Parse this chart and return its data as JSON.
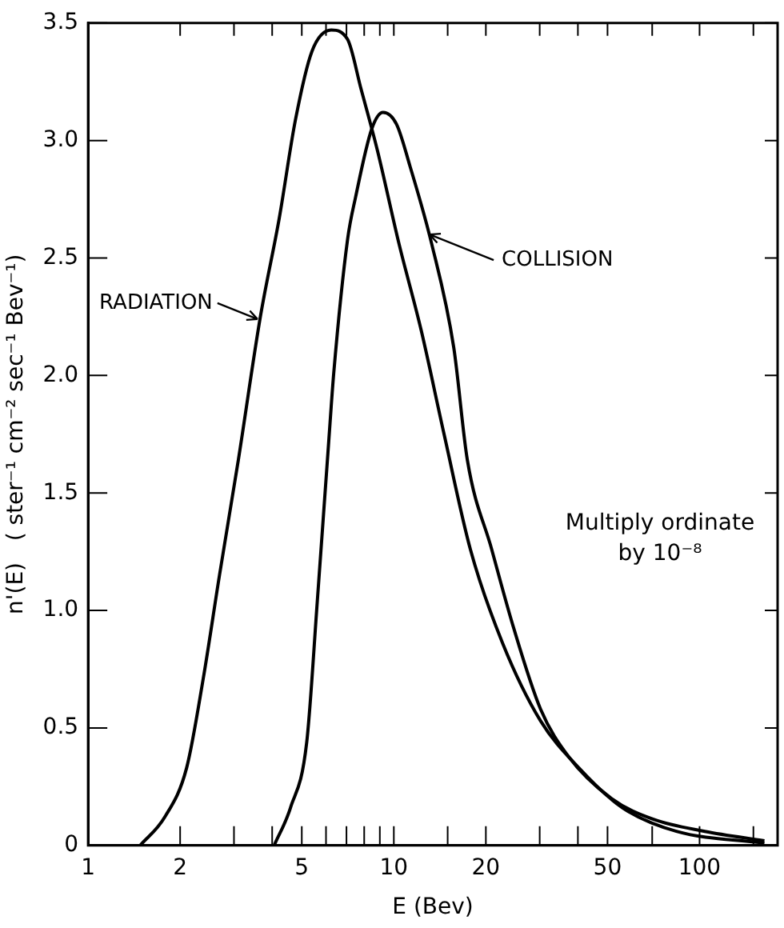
{
  "chart_data": {
    "type": "line",
    "xlabel": "E (Bev)",
    "ylabel": "n'(E)   ( ster⁻¹ cm⁻² sec⁻¹ Bev⁻¹)",
    "log": "x",
    "grid": false,
    "legend": false,
    "marker": "none",
    "line_style": "solid",
    "xlim": [
      1,
      180
    ],
    "ylim": [
      0,
      3.5
    ],
    "xticks": [
      1,
      2,
      {
        "value": 3,
        "label": null
      },
      {
        "value": 4,
        "label": null
      },
      5,
      {
        "value": 6,
        "label": null
      },
      {
        "value": 7,
        "label": null
      },
      {
        "value": 8,
        "label": null
      },
      {
        "value": 9,
        "label": null
      },
      10,
      {
        "value": 15,
        "label": null
      },
      20,
      {
        "value": 30,
        "label": null
      },
      {
        "value": 40,
        "label": null
      },
      50,
      {
        "value": 70,
        "label": null
      },
      100,
      {
        "value": 150,
        "label": null
      }
    ],
    "yticks": [
      0,
      0.5,
      {
        "value": 1,
        "label": "1.0"
      },
      1.5,
      {
        "value": 2,
        "label": "2.0"
      },
      2.5,
      {
        "value": 3,
        "label": "3.0"
      },
      3.5
    ],
    "series": [
      {
        "color": "#000000",
        "x": [
          1.48,
          1.78,
          2.1,
          2.38,
          2.69,
          3.1,
          3.66,
          4.22,
          4.77,
          5.4,
          6.24,
          7.06,
          7.81,
          8.83,
          10.4,
          12.3,
          14.6,
          17.8,
          22.7,
          30.2,
          40.3,
          56,
          84,
          163
        ],
        "values": [
          0,
          0.12,
          0.33,
          0.71,
          1.15,
          1.64,
          2.25,
          2.67,
          3.09,
          3.38,
          3.47,
          3.43,
          3.22,
          2.96,
          2.56,
          2.19,
          1.75,
          1.26,
          0.86,
          0.53,
          0.33,
          0.16,
          0.06,
          0.01
        ]
      },
      {
        "color": "#000000",
        "x": [
          4.06,
          4.59,
          5.19,
          5.62,
          6.11,
          6.36,
          7.06,
          7.5,
          8.47,
          9.22,
          10.2,
          11.3,
          13.3,
          15.7,
          17.4,
          20.9,
          24.6,
          30.2,
          37.2,
          51.5,
          71,
          104,
          163
        ],
        "values": [
          0,
          0.16,
          0.44,
          1.04,
          1.7,
          2.01,
          2.58,
          2.76,
          3.05,
          3.12,
          3.07,
          2.89,
          2.56,
          2.12,
          1.64,
          1.26,
          0.93,
          0.58,
          0.38,
          0.2,
          0.11,
          0.06,
          0.02
        ]
      }
    ],
    "annotations": [
      {
        "text": "RADIATION",
        "x": 3.58,
        "y": 2.24
      },
      {
        "text": "COLLISION",
        "x": 13.1,
        "y": 2.6
      },
      "Multiply ordinate by 10⁻⁸"
    ]
  }
}
